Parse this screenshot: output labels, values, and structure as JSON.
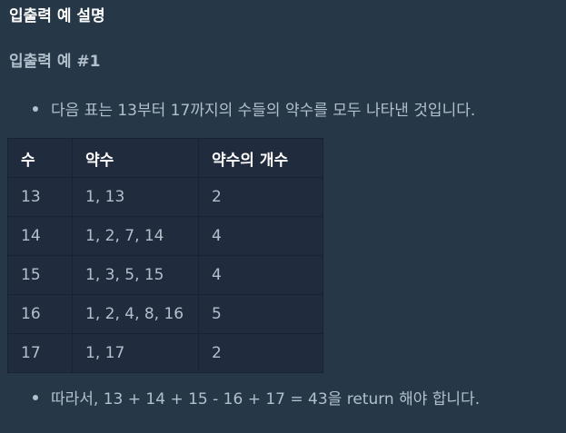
{
  "heading": "입출력 예 설명",
  "subheading": "입출력 예 #1",
  "bullets": [
    "다음 표는 13부터 17까지의 수들의 약수를 모두 나타낸 것입니다.",
    "따라서, 13 + 14 + 15 - 16 + 17 = 43을 return 해야 합니다."
  ],
  "table": {
    "headers": [
      "수",
      "약수",
      "약수의 개수"
    ],
    "rows": [
      [
        "13",
        "1, 13",
        "2"
      ],
      [
        "14",
        "1, 2, 7, 14",
        "4"
      ],
      [
        "15",
        "1, 3, 5, 15",
        "4"
      ],
      [
        "16",
        "1, 2, 4, 8, 16",
        "5"
      ],
      [
        "17",
        "1, 17",
        "2"
      ]
    ]
  }
}
